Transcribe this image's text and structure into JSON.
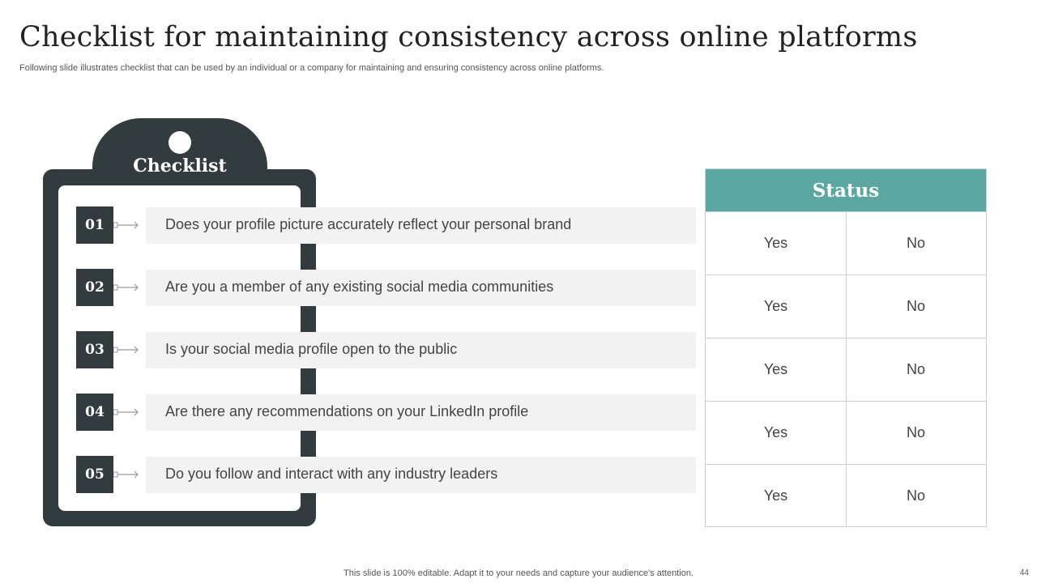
{
  "slide": {
    "title": "Checklist for maintaining consistency across online platforms",
    "subtitle": "Following slide illustrates checklist that can be used by an individual or a company for maintaining and ensuring consistency across online platforms.",
    "footer": "This slide is 100% editable. Adapt it to your needs and capture your audience's attention.",
    "page_number": "44"
  },
  "checklist": {
    "label": "Checklist",
    "items": [
      {
        "number": "01",
        "text": "Does your profile picture accurately reflect your personal brand"
      },
      {
        "number": "02",
        "text": "Are you a member of any existing social media communities"
      },
      {
        "number": "03",
        "text": "Is your social media profile open to the public"
      },
      {
        "number": "04",
        "text": "Are there any recommendations on your LinkedIn profile"
      },
      {
        "number": "05",
        "text": "Do you follow and interact with any industry leaders"
      }
    ]
  },
  "status": {
    "header": "Status",
    "rows": [
      {
        "yes": "Yes",
        "no": "No"
      },
      {
        "yes": "Yes",
        "no": "No"
      },
      {
        "yes": "Yes",
        "no": "No"
      },
      {
        "yes": "Yes",
        "no": "No"
      },
      {
        "yes": "Yes",
        "no": "No"
      }
    ]
  },
  "colors": {
    "dark": "#323c3e",
    "accent_teal": "#5aa8a1",
    "item_bg": "#f2f2f2"
  },
  "icons": [
    "clipboard-icon",
    "arrow-connector-icon"
  ]
}
